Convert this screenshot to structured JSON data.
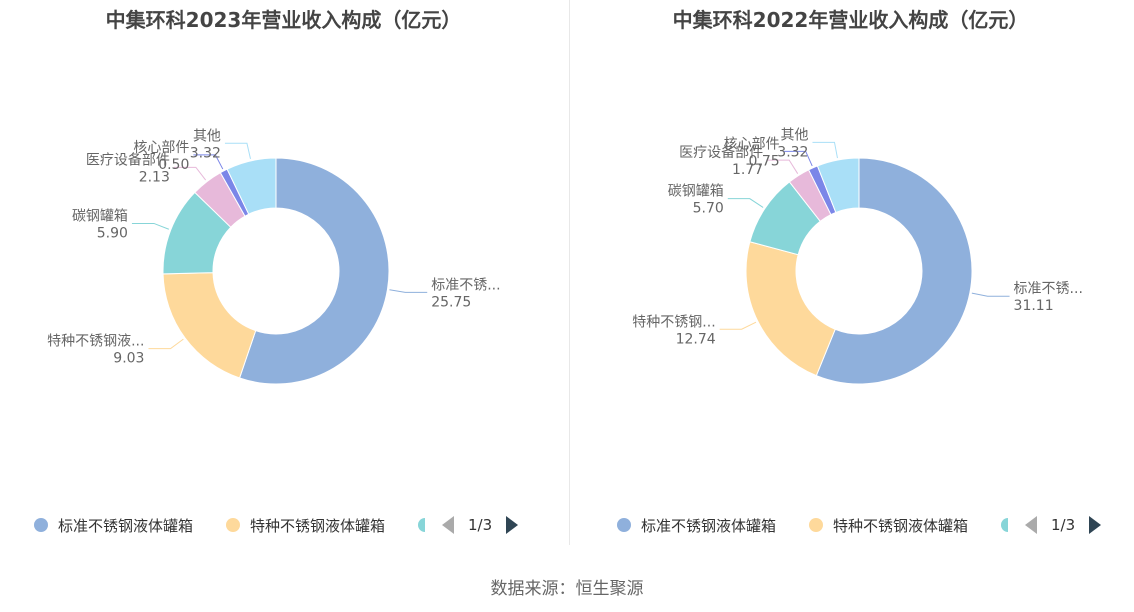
{
  "colors": {
    "series": [
      "#8fb0dc",
      "#fed99b",
      "#87d5d8",
      "#e7b9da",
      "#7b86e8",
      "#a9dff7"
    ]
  },
  "chart_data": [
    {
      "type": "pie",
      "title": "中集环科2023年营业收入构成（亿元）",
      "slices": [
        {
          "name": "标准不锈钢液体罐箱",
          "label": "标准不锈...",
          "value": 25.75,
          "value_text": "25.75"
        },
        {
          "name": "特种不锈钢液体罐箱",
          "label": "特种不锈钢液...",
          "value": 9.03,
          "value_text": "9.03"
        },
        {
          "name": "碳钢罐箱",
          "label": "碳钢罐箱",
          "value": 5.9,
          "value_text": "5.90"
        },
        {
          "name": "医疗设备部件",
          "label": "医疗设备部件",
          "value": 2.13,
          "value_text": "2.13"
        },
        {
          "name": "核心部件",
          "label": "核心部件",
          "value": 0.5,
          "value_text": "0.50"
        },
        {
          "name": "其他",
          "label": "其他",
          "value": 3.32,
          "value_text": "3.32"
        }
      ],
      "legend": {
        "items": [
          "标准不锈钢液体罐箱",
          "特种不锈钢液体罐箱"
        ],
        "page": "1/3",
        "placement": "bottom"
      }
    },
    {
      "type": "pie",
      "title": "中集环科2022年营业收入构成（亿元）",
      "slices": [
        {
          "name": "标准不锈钢液体罐箱",
          "label": "标准不锈...",
          "value": 31.11,
          "value_text": "31.11"
        },
        {
          "name": "特种不锈钢液体罐箱",
          "label": "特种不锈钢...",
          "value": 12.74,
          "value_text": "12.74"
        },
        {
          "name": "碳钢罐箱",
          "label": "碳钢罐箱",
          "value": 5.7,
          "value_text": "5.70"
        },
        {
          "name": "医疗设备部件",
          "label": "医疗设备部件",
          "value": 1.77,
          "value_text": "1.77"
        },
        {
          "name": "核心部件",
          "label": "核心部件",
          "value": 0.75,
          "value_text": "0.75"
        },
        {
          "name": "其他",
          "label": "其他",
          "value": 3.32,
          "value_text": "3.32"
        }
      ],
      "legend": {
        "items": [
          "标准不锈钢液体罐箱",
          "特种不锈钢液体罐箱"
        ],
        "page": "1/3",
        "placement": "bottom"
      }
    }
  ],
  "source": "数据来源：恒生聚源"
}
